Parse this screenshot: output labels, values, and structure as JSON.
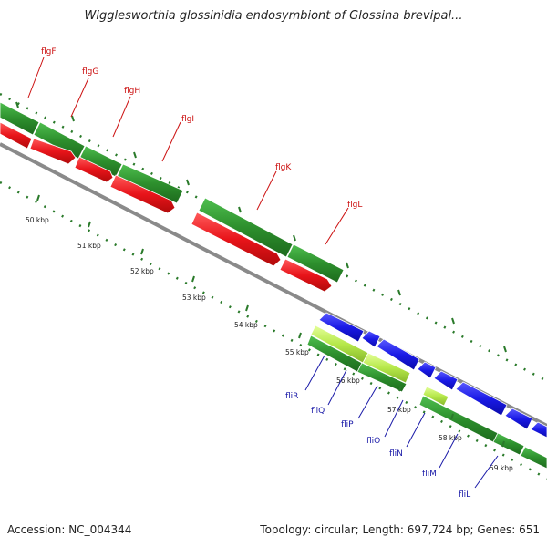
{
  "title": "Wigglesworthia glossinidia endosymbiont of Glossina brevipal...",
  "footer": {
    "accession": "Accession: NC_004344",
    "summary": "Topology: circular; Length: 697,724 bp; Genes: 651"
  },
  "colors": {
    "backbone": "#8a8a8a",
    "green": "#2d8f2d",
    "light_green": "#b6e84a",
    "red": "#e8141a",
    "blue": "#1a1ae6",
    "upper_label": "#cc1111",
    "lower_label": "#1a1aa8",
    "tick": "#2a7a2a"
  },
  "kbp_ticks": [
    "50 kbp",
    "51 kbp",
    "52 kbp",
    "53 kbp",
    "54 kbp",
    "55 kbp",
    "56 kbp",
    "57 kbp",
    "58 kbp",
    "59 kbp"
  ],
  "upper_genes": [
    "flgF",
    "flgG",
    "flgH",
    "flgI",
    "flgK",
    "flgL"
  ],
  "lower_genes": [
    "fliR",
    "fliQ",
    "fliP",
    "fliO",
    "fliN",
    "fliM",
    "fliL"
  ]
}
